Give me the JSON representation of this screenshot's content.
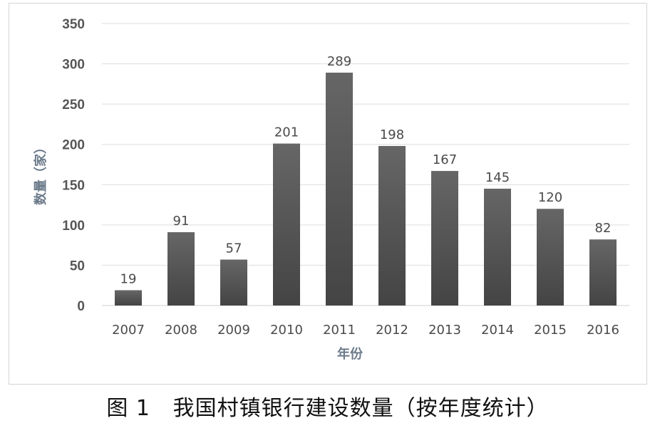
{
  "caption": "图 1   我国村镇银行建设数量（按年度统计）",
  "chart_data": {
    "type": "bar",
    "categories": [
      "2007",
      "2008",
      "2009",
      "2010",
      "2011",
      "2012",
      "2013",
      "2014",
      "2015",
      "2016"
    ],
    "values": [
      19,
      91,
      57,
      201,
      289,
      198,
      167,
      145,
      120,
      82
    ],
    "xlabel": "年份",
    "ylabel": "数量（家）",
    "ylim": [
      0,
      350
    ],
    "yticks": [
      0,
      50,
      100,
      150,
      200,
      250,
      300,
      350
    ],
    "grid": true,
    "data_labels": true,
    "bar_color": "#555555"
  }
}
